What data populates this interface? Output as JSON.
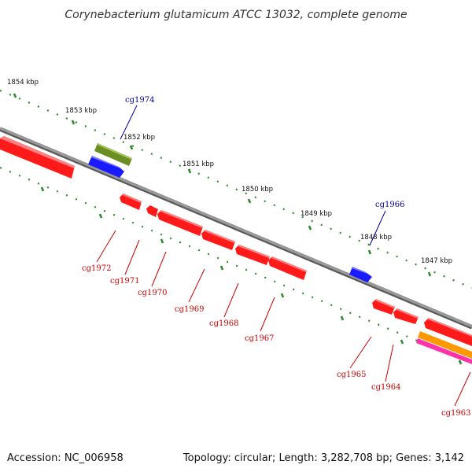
{
  "title": "Corynebacterium glutamicum ATCC 13032, complete genome",
  "accession": "Accession: NC_006958",
  "stats": "Topology: circular; Length: 3,282,708 bp; Genes: 3,142",
  "ruler_labels": [
    "1854 kbp",
    "1853 kbp",
    "1852 kbp",
    "1851 kbp",
    "1850 kbp",
    "1849 kbp",
    "1848 kbp",
    "1847 kbp"
  ],
  "forward_genes": [
    {
      "label": "cg1974",
      "color": "#000099"
    },
    {
      "label": "cg1966",
      "color": "#000099"
    }
  ],
  "reverse_genes": [
    {
      "label": "cg1972",
      "color": "#cc0000"
    },
    {
      "label": "cg1971",
      "color": "#cc0000"
    },
    {
      "label": "cg1970",
      "color": "#cc0000"
    },
    {
      "label": "cg1969",
      "color": "#cc0000"
    },
    {
      "label": "cg1968",
      "color": "#cc0000"
    },
    {
      "label": "cg1967",
      "color": "#cc0000"
    },
    {
      "label": "cg1965",
      "color": "#cc0000"
    },
    {
      "label": "cg1964",
      "color": "#cc0000"
    },
    {
      "label": "cg1963",
      "color": "#cc0000"
    }
  ],
  "colors": {
    "forward_cds": "#1a1aff",
    "reverse_cds": "#ff1a1a",
    "backbone": "#808080",
    "ticks": "#2e8b2e",
    "olive_feature": "#6b8e23",
    "orange_feature": "#ff9900",
    "magenta_feature": "#ff33aa"
  }
}
